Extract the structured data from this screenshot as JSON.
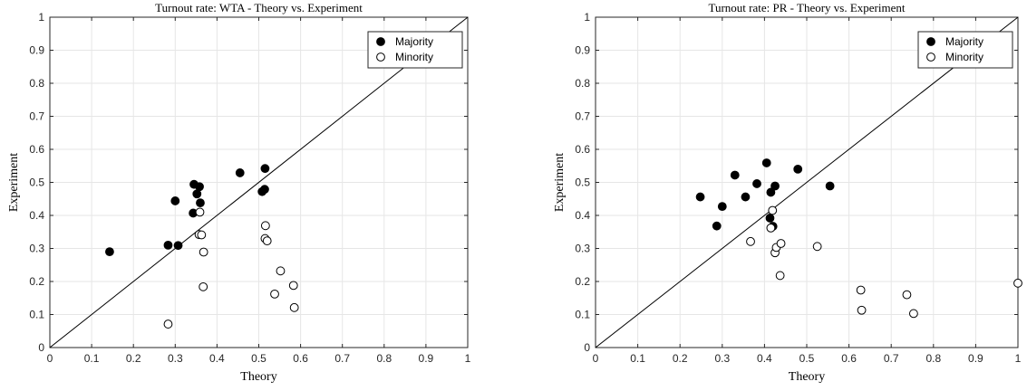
{
  "chart_data": [
    {
      "type": "scatter",
      "title": "Turnout rate: WTA - Theory vs. Experiment",
      "xlabel": "Theory",
      "ylabel": "Experiment",
      "xlim": [
        0,
        1
      ],
      "ylim": [
        0,
        1
      ],
      "ticks": [
        "0",
        "0.1",
        "0.2",
        "0.3",
        "0.4",
        "0.5",
        "0.6",
        "0.7",
        "0.8",
        "0.9",
        "1"
      ],
      "grid": true,
      "reference_line": "y = x",
      "legend_position": "top-right",
      "series": [
        {
          "name": "Majority",
          "marker": "filled-circle",
          "points": [
            [
              0.143,
              0.29
            ],
            [
              0.283,
              0.31
            ],
            [
              0.3,
              0.444
            ],
            [
              0.307,
              0.309
            ],
            [
              0.343,
              0.407
            ],
            [
              0.345,
              0.494
            ],
            [
              0.352,
              0.465
            ],
            [
              0.358,
              0.487
            ],
            [
              0.36,
              0.438
            ],
            [
              0.455,
              0.529
            ],
            [
              0.508,
              0.472
            ],
            [
              0.514,
              0.479
            ],
            [
              0.515,
              0.542
            ]
          ]
        },
        {
          "name": "Minority",
          "marker": "open-circle",
          "points": [
            [
              0.283,
              0.071
            ],
            [
              0.357,
              0.342
            ],
            [
              0.359,
              0.41
            ],
            [
              0.363,
              0.341
            ],
            [
              0.367,
              0.184
            ],
            [
              0.368,
              0.289
            ],
            [
              0.515,
              0.33
            ],
            [
              0.516,
              0.369
            ],
            [
              0.52,
              0.323
            ],
            [
              0.538,
              0.162
            ],
            [
              0.552,
              0.232
            ],
            [
              0.583,
              0.188
            ],
            [
              0.585,
              0.121
            ]
          ]
        }
      ]
    },
    {
      "type": "scatter",
      "title": "Turnout rate: PR - Theory vs. Experiment",
      "xlabel": "Theory",
      "ylabel": "Experiment",
      "xlim": [
        0,
        1
      ],
      "ylim": [
        0,
        1
      ],
      "ticks": [
        "0",
        "0.1",
        "0.2",
        "0.3",
        "0.4",
        "0.5",
        "0.6",
        "0.7",
        "0.8",
        "0.9",
        "1"
      ],
      "grid": true,
      "reference_line": "y = x",
      "legend_position": "top-right",
      "series": [
        {
          "name": "Majority",
          "marker": "filled-circle",
          "points": [
            [
              0.248,
              0.456
            ],
            [
              0.287,
              0.368
            ],
            [
              0.3,
              0.427
            ],
            [
              0.33,
              0.522
            ],
            [
              0.355,
              0.456
            ],
            [
              0.382,
              0.496
            ],
            [
              0.405,
              0.559
            ],
            [
              0.413,
              0.392
            ],
            [
              0.415,
              0.47
            ],
            [
              0.42,
              0.367
            ],
            [
              0.425,
              0.489
            ],
            [
              0.479,
              0.54
            ],
            [
              0.555,
              0.489
            ]
          ]
        },
        {
          "name": "Minority",
          "marker": "open-circle",
          "points": [
            [
              0.367,
              0.321
            ],
            [
              0.415,
              0.362
            ],
            [
              0.419,
              0.415
            ],
            [
              0.425,
              0.287
            ],
            [
              0.428,
              0.303
            ],
            [
              0.437,
              0.218
            ],
            [
              0.439,
              0.315
            ],
            [
              0.525,
              0.306
            ],
            [
              0.628,
              0.174
            ],
            [
              0.63,
              0.113
            ],
            [
              0.737,
              0.16
            ],
            [
              0.753,
              0.103
            ],
            [
              1.0,
              0.195
            ]
          ]
        }
      ]
    }
  ]
}
